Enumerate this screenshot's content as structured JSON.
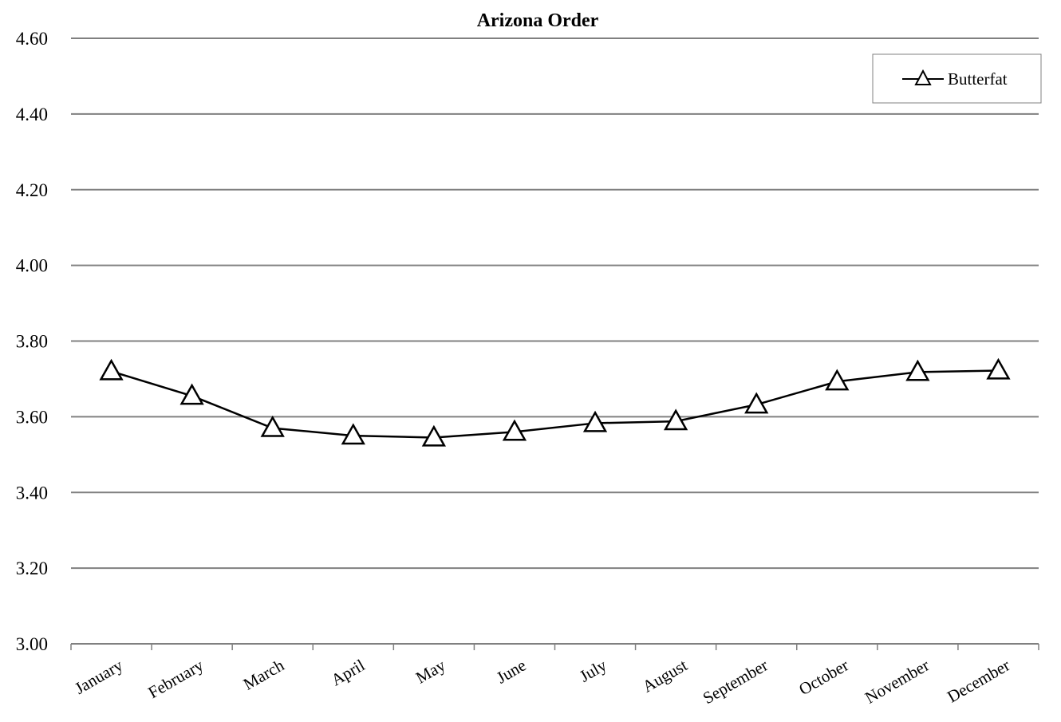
{
  "chart_data": {
    "type": "line",
    "title": "Arizona Order",
    "xlabel": "",
    "ylabel": "",
    "categories": [
      "January",
      "February",
      "March",
      "April",
      "May",
      "June",
      "July",
      "August",
      "September",
      "October",
      "November",
      "December"
    ],
    "series": [
      {
        "name": "Butterfat",
        "values": [
          3.72,
          3.655,
          3.57,
          3.55,
          3.545,
          3.56,
          3.583,
          3.588,
          3.632,
          3.693,
          3.718,
          3.722
        ]
      }
    ],
    "ylim": [
      3.0,
      4.6
    ],
    "yticks": [
      "3.00",
      "3.20",
      "3.40",
      "3.60",
      "3.80",
      "4.00",
      "4.20",
      "4.40",
      "4.60"
    ],
    "grid": true,
    "legend_position": "top-right",
    "colors": {
      "line": "#000000",
      "marker_fill": "#ffffff",
      "grid": "#808080"
    }
  }
}
